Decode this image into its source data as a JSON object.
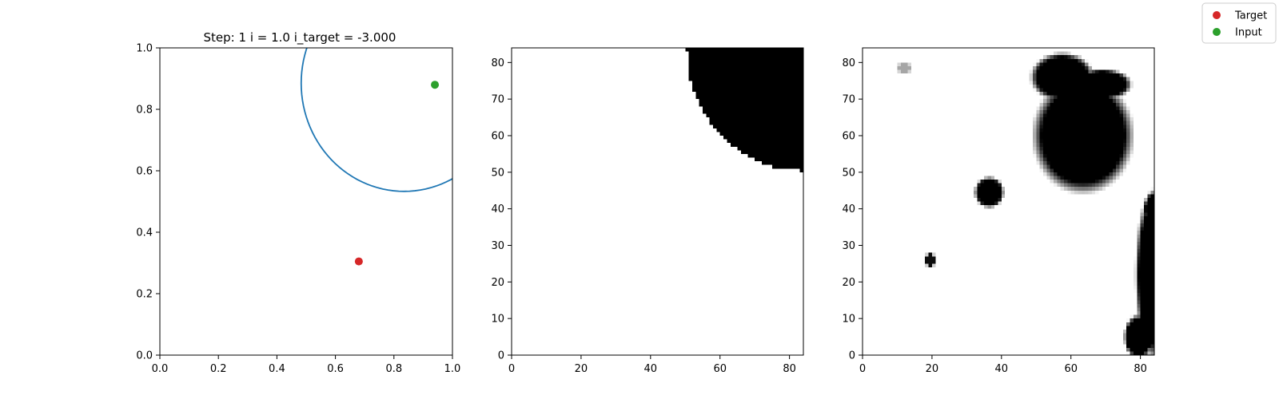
{
  "figure": {
    "legend": {
      "placement": "upper-right (figure)",
      "entries": [
        {
          "label": "Target",
          "color": "#d62728",
          "marker": "circle"
        },
        {
          "label": "Input",
          "color": "#2ca02c",
          "marker": "circle"
        }
      ]
    }
  },
  "chart_data": [
    {
      "type": "scatter",
      "title": "Step: 1 i = 1.0 i_target = -3.000",
      "xlabel": "",
      "ylabel": "",
      "xlim": [
        0,
        1
      ],
      "ylim": [
        0,
        1
      ],
      "x_ticks": [
        "0.0",
        "0.2",
        "0.4",
        "0.6",
        "0.8",
        "1.0"
      ],
      "y_ticks": [
        "0.0",
        "0.2",
        "0.4",
        "0.6",
        "0.8",
        "1.0"
      ],
      "grid": false,
      "circle": {
        "color": "#1f77b4",
        "center": [
          0.835,
          0.885
        ],
        "radius": 0.352
      },
      "points": [
        {
          "name": "Target",
          "x": 0.68,
          "y": 0.305,
          "color": "#d62728"
        },
        {
          "name": "Input",
          "x": 0.94,
          "y": 0.88,
          "color": "#2ca02c"
        }
      ]
    },
    {
      "type": "heatmap",
      "title": "",
      "colormap": "gray_r",
      "xlim": [
        0,
        84
      ],
      "ylim": [
        0,
        84
      ],
      "x_ticks": [
        "0",
        "20",
        "40",
        "60",
        "80"
      ],
      "y_ticks": [
        "0",
        "10",
        "20",
        "30",
        "40",
        "50",
        "60",
        "70",
        "80"
      ],
      "blobs": [
        {
          "shape": "circle",
          "center": [
            83.5,
            83.5
          ],
          "radius": 33,
          "value": 1.0,
          "clip_y_min": 45
        }
      ]
    },
    {
      "type": "heatmap",
      "title": "",
      "colormap": "gray_r",
      "xlim": [
        0,
        84
      ],
      "ylim": [
        0,
        84
      ],
      "x_ticks": [
        "0",
        "20",
        "40",
        "60",
        "80"
      ],
      "y_ticks": [
        "0",
        "10",
        "20",
        "30",
        "40",
        "50",
        "60",
        "70",
        "80"
      ],
      "blobs": [
        {
          "shape": "ellipse",
          "center": [
            63.5,
            60
          ],
          "rx": 12,
          "ry": 13,
          "value": 1.0
        },
        {
          "shape": "ellipse",
          "center": [
            57.5,
            76
          ],
          "rx": 7.5,
          "ry": 5.5,
          "value": 1.0
        },
        {
          "shape": "ellipse",
          "center": [
            69,
            74
          ],
          "rx": 7,
          "ry": 3.5,
          "value": 1.0
        },
        {
          "shape": "ellipse",
          "center": [
            36.5,
            44.5
          ],
          "rx": 3.5,
          "ry": 3.5,
          "value": 1.0
        },
        {
          "shape": "ellipse",
          "center": [
            19.5,
            26
          ],
          "rx": 1.5,
          "ry": 1.5,
          "value": 0.95
        },
        {
          "shape": "ellipse",
          "center": [
            12,
            78.5
          ],
          "rx": 1.8,
          "ry": 1.3,
          "value": 0.35
        },
        {
          "shape": "ellipse",
          "center": [
            84,
            40
          ],
          "rx": 2.5,
          "ry": 4,
          "value": 1.0
        },
        {
          "shape": "ellipse",
          "center": [
            84,
            22
          ],
          "rx": 4.5,
          "ry": 19,
          "value": 1.0
        },
        {
          "shape": "ellipse",
          "center": [
            79.5,
            5
          ],
          "rx": 3.5,
          "ry": 5,
          "value": 1.0
        }
      ]
    }
  ]
}
